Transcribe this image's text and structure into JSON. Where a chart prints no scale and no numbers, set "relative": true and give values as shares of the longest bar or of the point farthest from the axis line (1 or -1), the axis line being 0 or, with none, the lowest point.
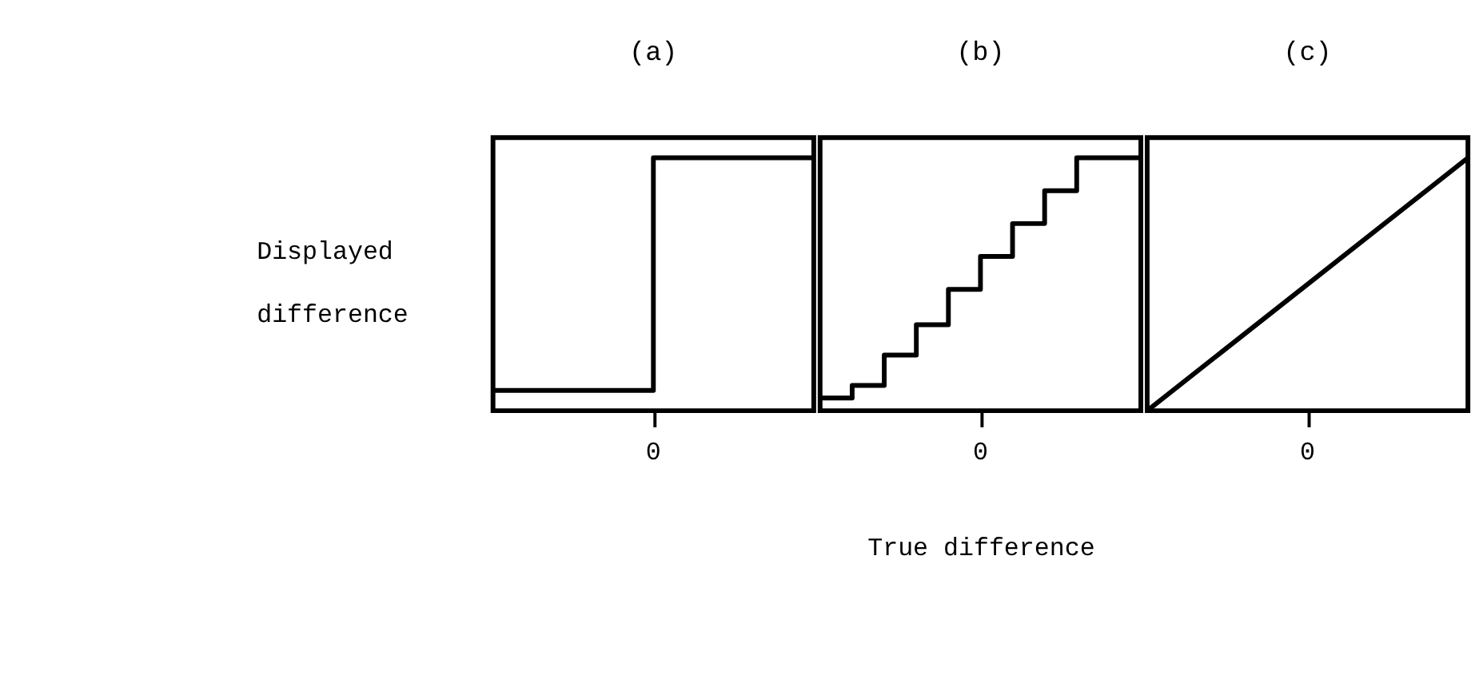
{
  "chart_data": [
    {
      "type": "step",
      "title": "(a)",
      "ylabel": "Displayed difference",
      "relative": true,
      "color": "#000000",
      "annotations": [
        "0"
      ],
      "categories": [
        null,
        null,
        null,
        null,
        null,
        null,
        null,
        null,
        null,
        null,
        null
      ],
      "values": [
        0.08,
        0.08,
        0.08,
        0.08,
        0.08,
        1,
        1,
        1,
        1,
        1,
        1
      ]
    },
    {
      "type": "step",
      "title": "(b)",
      "xlabel": "True difference",
      "relative": true,
      "color": "#000000",
      "annotations": [
        "0"
      ],
      "categories": [
        null,
        null,
        null,
        null,
        null,
        null,
        null,
        null,
        null,
        null,
        null
      ],
      "values": [
        0.05,
        0.1,
        0.22,
        0.34,
        0.48,
        0.61,
        0.74,
        0.87,
        1,
        1,
        1
      ]
    },
    {
      "type": "line",
      "title": "(c)",
      "relative": true,
      "color": "#000000",
      "annotations": [
        "0"
      ],
      "categories": [
        null,
        null,
        null
      ],
      "values": [
        0,
        0.5,
        1
      ]
    }
  ]
}
